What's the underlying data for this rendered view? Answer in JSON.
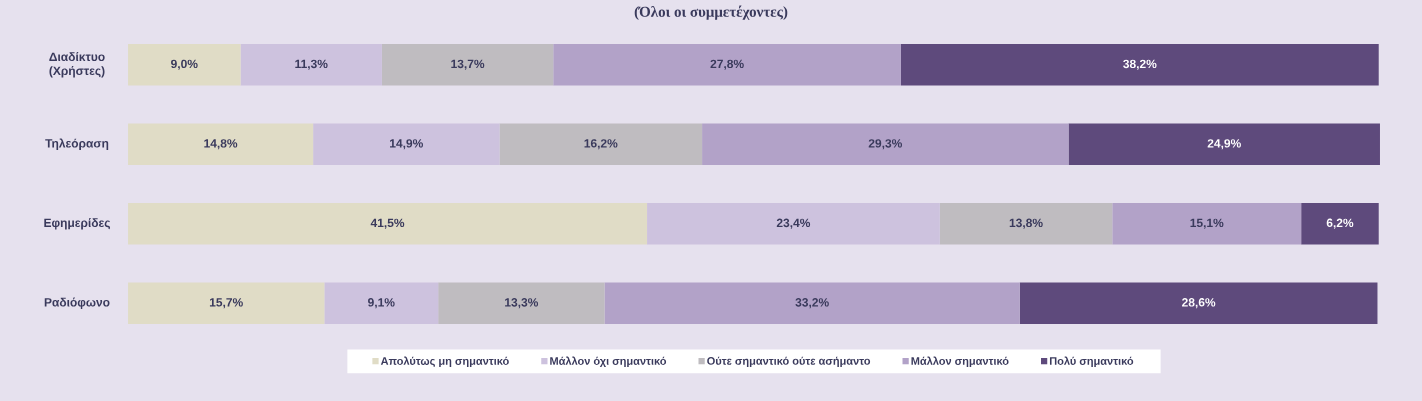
{
  "chart_data": {
    "type": "bar",
    "orientation": "horizontal",
    "stacked": true,
    "title": "(Όλοι οι συμμετέχοντες)",
    "categories": [
      "Διαδίκτυο (Χρήστες)",
      "Τηλεόραση",
      "Εφημερίδες",
      "Ραδιόφωνο"
    ],
    "series": [
      {
        "name": "Απολύτως μη σημαντικό",
        "color": "#e0dcc6",
        "values": [
          9.0,
          14.8,
          41.5,
          15.7
        ],
        "value_labels": [
          "9,0%",
          "14,8%",
          "41,5%",
          "15,7%"
        ]
      },
      {
        "name": "Μάλλον όχι σημαντικό",
        "color": "#cdc2de",
        "values": [
          11.3,
          14.9,
          23.4,
          9.1
        ],
        "value_labels": [
          "11,3%",
          "14,9%",
          "23,4%",
          "9,1%"
        ]
      },
      {
        "name": "Ούτε σημαντικό ούτε ασήμαντο",
        "color": "#bfbcc0",
        "values": [
          13.7,
          16.2,
          13.8,
          13.3
        ],
        "value_labels": [
          "13,7%",
          "16,2%",
          "13,8%",
          "13,3%"
        ]
      },
      {
        "name": "Μάλλον σημαντικό",
        "color": "#b2a2c8",
        "values": [
          27.8,
          29.3,
          15.1,
          33.2
        ],
        "value_labels": [
          "27,8%",
          "29,3%",
          "15,1%",
          "33,2%"
        ]
      },
      {
        "name": "Πολύ σημαντικό",
        "color": "#5e4a7c",
        "values": [
          38.2,
          24.9,
          6.2,
          28.6
        ],
        "value_labels": [
          "38,2%",
          "24,9%",
          "6,2%",
          "28,6%"
        ]
      }
    ],
    "legend": "bottom",
    "tick_labels": "y"
  }
}
